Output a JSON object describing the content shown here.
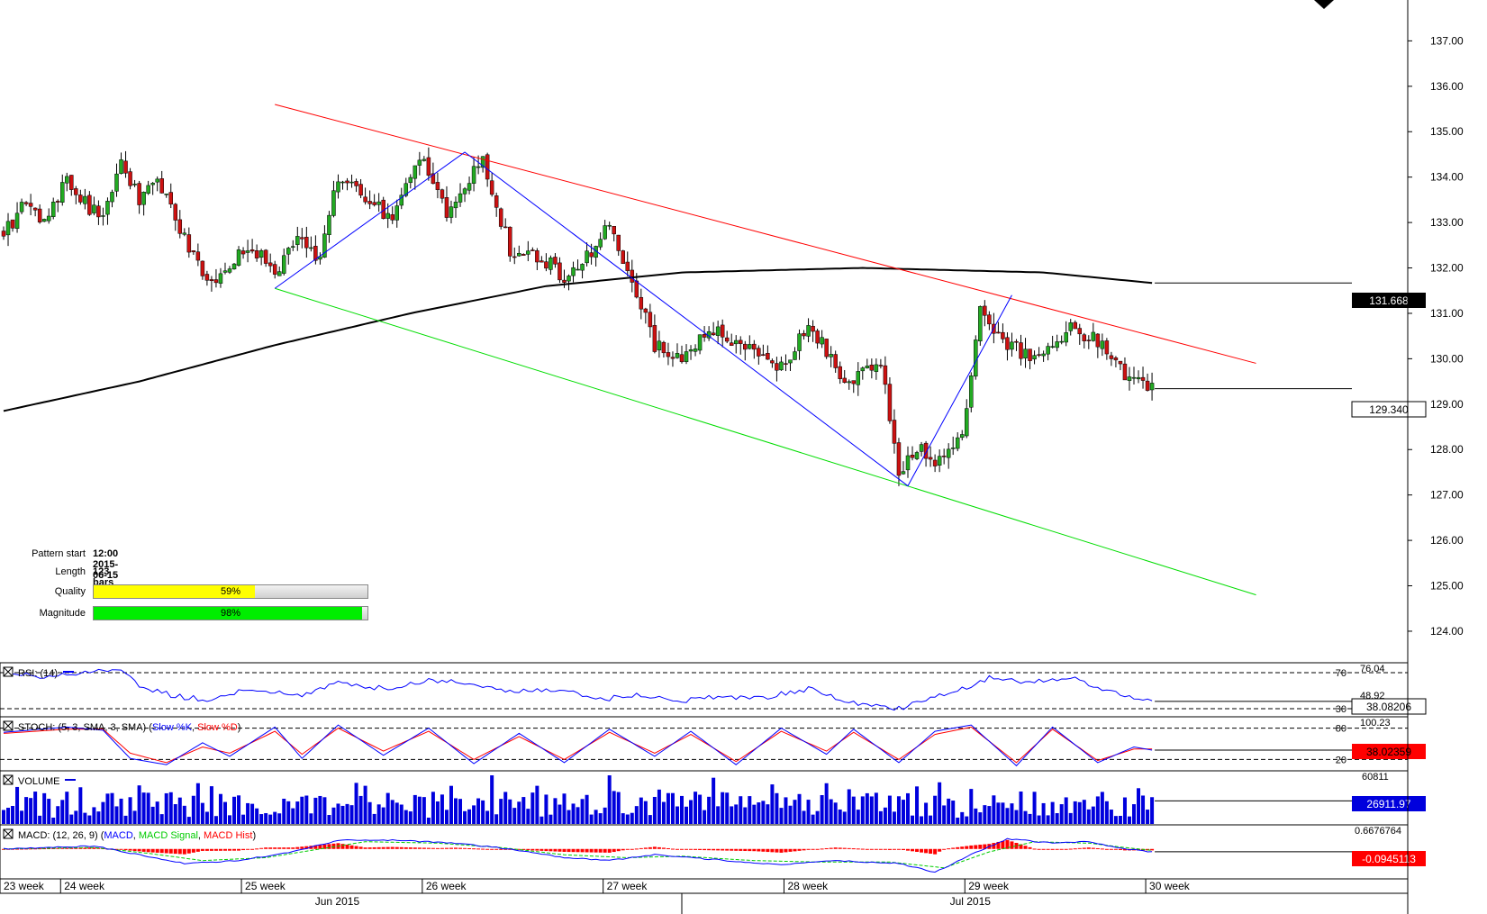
{
  "chart_data": {
    "type": "candlestick",
    "main": {
      "ylim": [
        123.9,
        137.9
      ],
      "y_ticks": [
        124.0,
        125.0,
        126.0,
        127.0,
        128.0,
        129.0,
        130.0,
        131.0,
        132.0,
        133.0,
        134.0,
        135.0,
        136.0,
        137.0
      ],
      "y_tick_labels": [
        "124.00",
        "125.00",
        "126.00",
        "127.00",
        "128.00",
        "129.00",
        "130.00",
        "131.00",
        "132.00",
        "133.00",
        "134.00",
        "135.00",
        "136.00",
        "137.00"
      ],
      "bar_count": 255,
      "ohlc_path": [
        [
          0,
          132.8
        ],
        [
          4,
          133.3
        ],
        [
          9,
          133.1
        ],
        [
          14,
          133.9
        ],
        [
          22,
          133.0
        ],
        [
          26,
          134.5
        ],
        [
          30,
          133.4
        ],
        [
          34,
          134.0
        ],
        [
          38,
          133.0
        ],
        [
          45,
          131.6
        ],
        [
          50,
          132.1
        ],
        [
          55,
          132.5
        ],
        [
          60,
          131.8
        ],
        [
          65,
          132.7
        ],
        [
          70,
          132.2
        ],
        [
          74,
          134.0
        ],
        [
          80,
          133.6
        ],
        [
          86,
          133.0
        ],
        [
          92,
          134.5
        ],
        [
          98,
          133.2
        ],
        [
          106,
          134.4
        ],
        [
          112,
          132.4
        ],
        [
          118,
          132.3
        ],
        [
          124,
          131.8
        ],
        [
          128,
          132.1
        ],
        [
          134,
          132.9
        ],
        [
          140,
          131.5
        ],
        [
          144,
          130.3
        ],
        [
          150,
          130.0
        ],
        [
          156,
          130.7
        ],
        [
          162,
          130.3
        ],
        [
          172,
          129.8
        ],
        [
          178,
          130.8
        ],
        [
          186,
          129.5
        ],
        [
          194,
          129.9
        ],
        [
          198,
          127.4
        ],
        [
          202,
          128.0
        ],
        [
          208,
          127.7
        ],
        [
          212,
          128.3
        ],
        [
          216,
          131.0
        ],
        [
          220,
          130.4
        ],
        [
          228,
          130.0
        ],
        [
          236,
          130.7
        ],
        [
          242,
          130.4
        ],
        [
          248,
          129.6
        ],
        [
          254,
          129.34
        ]
      ],
      "ma200": [
        [
          0,
          128.85
        ],
        [
          30,
          129.5
        ],
        [
          60,
          130.3
        ],
        [
          90,
          131.0
        ],
        [
          120,
          131.6
        ],
        [
          150,
          131.9
        ],
        [
          190,
          132.0
        ],
        [
          210,
          131.95
        ],
        [
          230,
          131.9
        ],
        [
          254,
          131.668
        ]
      ],
      "pattern_upper_line": [
        [
          60,
          135.6
        ],
        [
          277,
          129.9
        ]
      ],
      "pattern_lower_line": [
        [
          60,
          131.55
        ],
        [
          277,
          124.8
        ]
      ],
      "pattern_points": [
        [
          60,
          131.55
        ],
        [
          102,
          134.55
        ],
        [
          200,
          127.2
        ],
        [
          223,
          131.4
        ]
      ],
      "current_price": "129.340",
      "ma_value": "131.668"
    },
    "rsi": {
      "title": "RSI: (14)",
      "levels": [
        70,
        30
      ],
      "level_labels": [
        "70",
        "30"
      ],
      "tick_labels": [
        "76.04",
        "48.92"
      ],
      "value": "38.08206",
      "ylim": [
        22,
        80
      ],
      "path": [
        [
          0,
          68
        ],
        [
          10,
          66
        ],
        [
          20,
          72
        ],
        [
          26,
          70
        ],
        [
          30,
          56
        ],
        [
          38,
          44
        ],
        [
          45,
          40
        ],
        [
          55,
          52
        ],
        [
          65,
          44
        ],
        [
          74,
          60
        ],
        [
          84,
          52
        ],
        [
          94,
          62
        ],
        [
          104,
          58
        ],
        [
          112,
          48
        ],
        [
          122,
          52
        ],
        [
          132,
          40
        ],
        [
          140,
          46
        ],
        [
          148,
          38
        ],
        [
          158,
          44
        ],
        [
          168,
          42
        ],
        [
          178,
          52
        ],
        [
          188,
          36
        ],
        [
          198,
          30
        ],
        [
          204,
          40
        ],
        [
          212,
          52
        ],
        [
          218,
          64
        ],
        [
          226,
          60
        ],
        [
          236,
          64
        ],
        [
          244,
          50
        ],
        [
          254,
          38
        ]
      ]
    },
    "stoch": {
      "title": "STOCH: (5, 3, SMA, 3, SMA)",
      "legend": [
        {
          "name": "Slow %K",
          "color": "#0000ff"
        },
        {
          "name": "Slow %D",
          "color": "#ff0000"
        }
      ],
      "levels": [
        80,
        20
      ],
      "level_labels": [
        "80",
        "20"
      ],
      "tick_labels": [
        "100.23"
      ],
      "value": "38.02359",
      "ylim": [
        0,
        100
      ],
      "k_path": [
        [
          0,
          72
        ],
        [
          14,
          82
        ],
        [
          22,
          76
        ],
        [
          28,
          22
        ],
        [
          36,
          10
        ],
        [
          44,
          52
        ],
        [
          50,
          26
        ],
        [
          60,
          82
        ],
        [
          66,
          22
        ],
        [
          74,
          86
        ],
        [
          84,
          28
        ],
        [
          94,
          80
        ],
        [
          104,
          12
        ],
        [
          114,
          70
        ],
        [
          124,
          14
        ],
        [
          134,
          78
        ],
        [
          144,
          26
        ],
        [
          152,
          74
        ],
        [
          162,
          10
        ],
        [
          172,
          80
        ],
        [
          182,
          30
        ],
        [
          188,
          78
        ],
        [
          198,
          14
        ],
        [
          206,
          74
        ],
        [
          214,
          86
        ],
        [
          224,
          8
        ],
        [
          232,
          82
        ],
        [
          242,
          14
        ],
        [
          250,
          44
        ],
        [
          254,
          38
        ]
      ],
      "d_path": [
        [
          0,
          70
        ],
        [
          14,
          78
        ],
        [
          22,
          78
        ],
        [
          28,
          32
        ],
        [
          36,
          14
        ],
        [
          44,
          44
        ],
        [
          50,
          32
        ],
        [
          60,
          74
        ],
        [
          66,
          30
        ],
        [
          74,
          80
        ],
        [
          84,
          36
        ],
        [
          94,
          74
        ],
        [
          104,
          20
        ],
        [
          114,
          64
        ],
        [
          124,
          20
        ],
        [
          134,
          72
        ],
        [
          144,
          32
        ],
        [
          152,
          68
        ],
        [
          162,
          16
        ],
        [
          172,
          74
        ],
        [
          182,
          36
        ],
        [
          188,
          72
        ],
        [
          198,
          20
        ],
        [
          206,
          68
        ],
        [
          214,
          82
        ],
        [
          224,
          14
        ],
        [
          232,
          78
        ],
        [
          242,
          18
        ],
        [
          250,
          40
        ],
        [
          254,
          40
        ]
      ]
    },
    "volume": {
      "title": "VOLUME",
      "tick_labels": [
        "60811"
      ],
      "value": "26911.97",
      "max": 60811,
      "seed": 7
    },
    "macd": {
      "title": "MACD: (12, 26, 9)",
      "legend": [
        {
          "name": "MACD",
          "color": "#0000ff"
        },
        {
          "name": "MACD Signal",
          "color": "#00cc00"
        },
        {
          "name": "MACD Hist",
          "color": "#ff0000"
        }
      ],
      "tick_labels": [
        "0.6676764"
      ],
      "value": "-0.0945113",
      "ylim": [
        -1.0,
        0.8
      ],
      "macd_path": [
        [
          0,
          0.0
        ],
        [
          20,
          0.1
        ],
        [
          30,
          -0.2
        ],
        [
          40,
          -0.5
        ],
        [
          52,
          -0.4
        ],
        [
          64,
          -0.1
        ],
        [
          74,
          0.3
        ],
        [
          86,
          0.3
        ],
        [
          100,
          0.2
        ],
        [
          112,
          0.0
        ],
        [
          124,
          -0.3
        ],
        [
          134,
          -0.4
        ],
        [
          144,
          -0.2
        ],
        [
          160,
          -0.4
        ],
        [
          172,
          -0.55
        ],
        [
          184,
          -0.4
        ],
        [
          198,
          -0.5
        ],
        [
          206,
          -0.8
        ],
        [
          214,
          -0.2
        ],
        [
          222,
          0.35
        ],
        [
          232,
          0.2
        ],
        [
          240,
          0.25
        ],
        [
          248,
          0.0
        ],
        [
          254,
          -0.1
        ]
      ],
      "signal_path": [
        [
          0,
          0.0
        ],
        [
          20,
          0.05
        ],
        [
          32,
          -0.15
        ],
        [
          44,
          -0.4
        ],
        [
          58,
          -0.3
        ],
        [
          70,
          0.0
        ],
        [
          80,
          0.25
        ],
        [
          96,
          0.2
        ],
        [
          110,
          0.05
        ],
        [
          124,
          -0.2
        ],
        [
          138,
          -0.3
        ],
        [
          150,
          -0.25
        ],
        [
          166,
          -0.4
        ],
        [
          180,
          -0.45
        ],
        [
          196,
          -0.45
        ],
        [
          208,
          -0.65
        ],
        [
          218,
          -0.1
        ],
        [
          228,
          0.25
        ],
        [
          240,
          0.2
        ],
        [
          248,
          0.05
        ],
        [
          254,
          -0.05
        ]
      ]
    },
    "x_axis": {
      "week_labels": [
        "23 week",
        "24 week",
        "25 week",
        "26 week",
        "27 week",
        "28 week",
        "29 week",
        "30 week"
      ],
      "week_starts": [
        0,
        13,
        53,
        93,
        133,
        173,
        213,
        253
      ],
      "month_labels": [
        "Jun 2015",
        "Jul 2015"
      ],
      "month_positions": [
        73,
        213
      ],
      "month_break": 150
    },
    "colors": {
      "up": "#22aa22",
      "down": "#cc1111",
      "ma": "#000000",
      "upper": "#ff0000",
      "lower": "#00dd00",
      "zigzag": "#0000ff",
      "rsi": "#0000ff",
      "volume": "#0000dd"
    }
  },
  "pattern_info": {
    "start_label": "Pattern start",
    "start_value": "12:00 2015-06-15",
    "length_label": "Length",
    "length_value": "123 bars",
    "quality_label": "Quality",
    "quality_value": "59%",
    "quality_fraction": 0.59,
    "quality_color": "#ffff00",
    "magnitude_label": "Magnitude",
    "magnitude_value": "98%",
    "magnitude_fraction": 0.98,
    "magnitude_color": "#00ee00"
  }
}
